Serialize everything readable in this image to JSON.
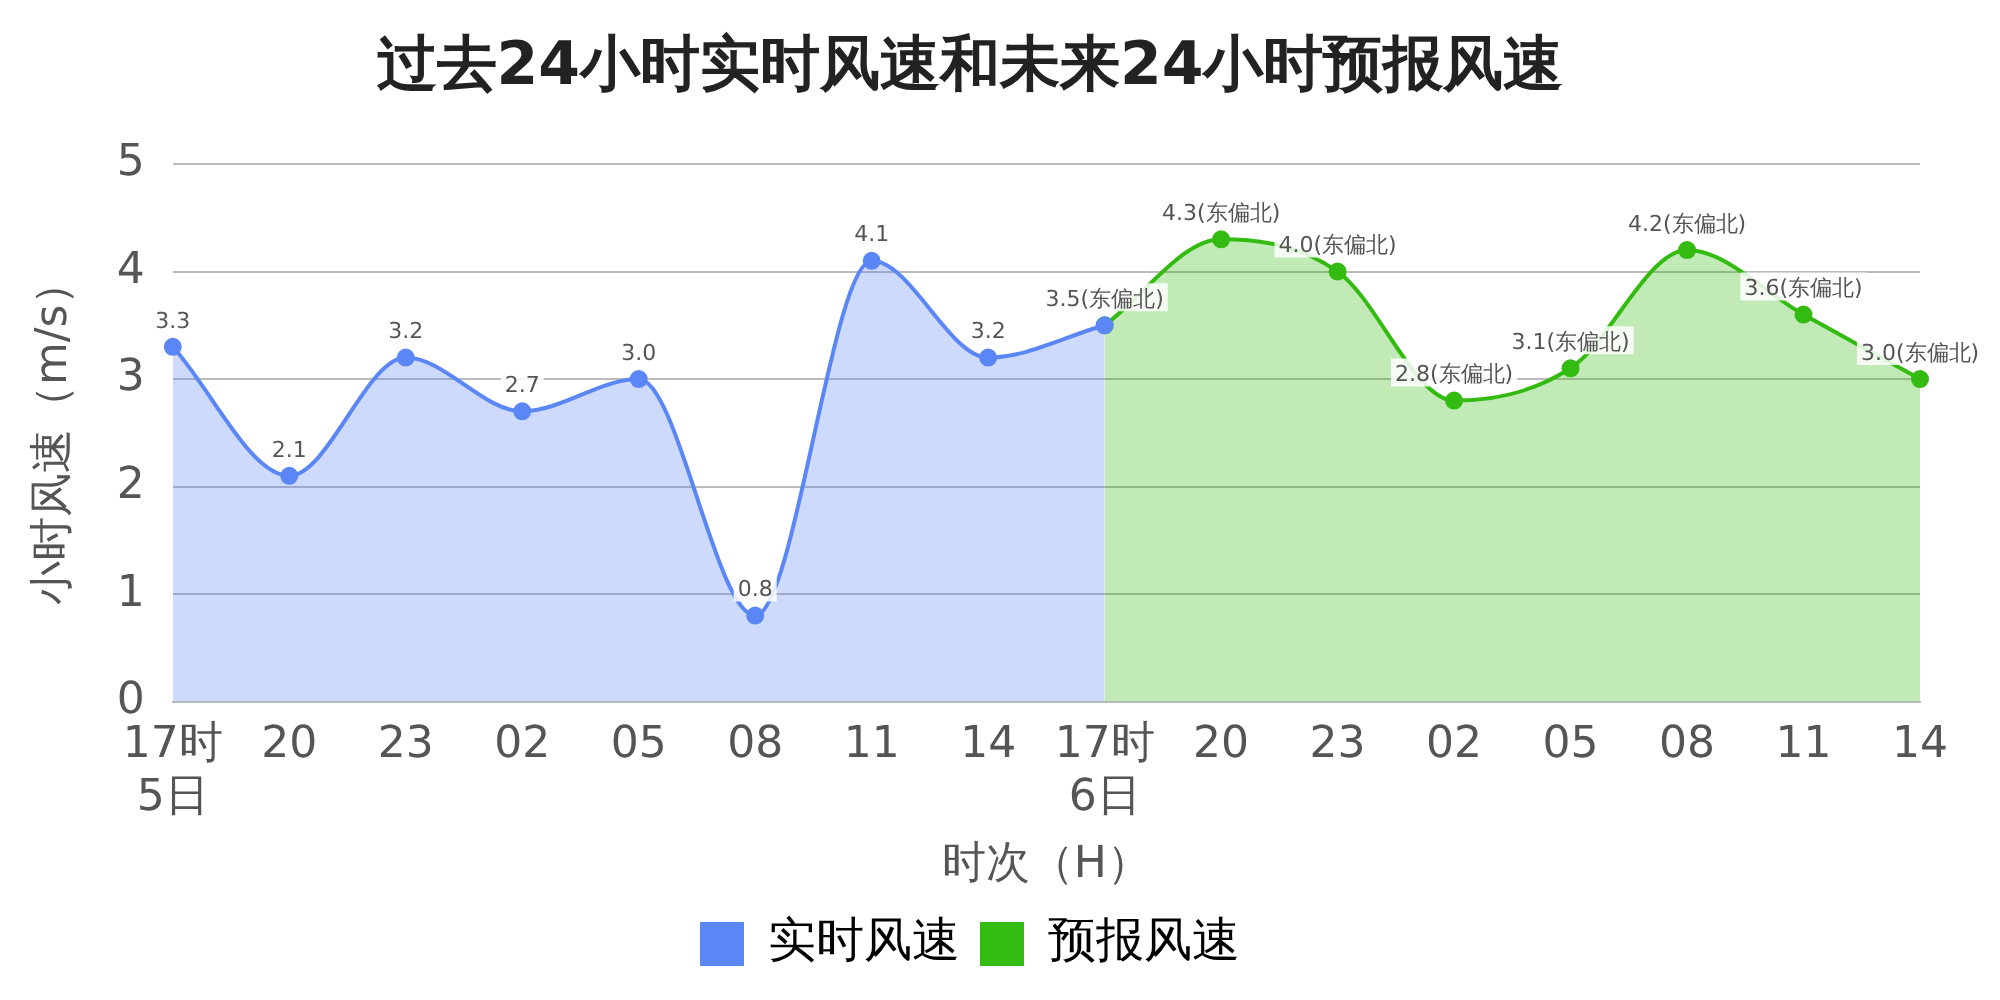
{
  "chart_data": {
    "type": "area",
    "title": "过去24小时实时风速和未来24小时预报风速",
    "xlabel": "时次（H）",
    "ylabel": "小时风速（m/s）",
    "categories": [
      "17时\n5日",
      "20",
      "23",
      "02",
      "05",
      "08",
      "11",
      "14",
      "17时\n6日",
      "20",
      "23",
      "02",
      "05",
      "08",
      "11",
      "14"
    ],
    "series": [
      {
        "name": "实时风速",
        "color": "#5b86f5",
        "values": [
          3.3,
          2.1,
          3.2,
          2.7,
          3.0,
          0.8,
          4.1,
          3.2,
          3.5,
          null,
          null,
          null,
          null,
          null,
          null,
          null
        ],
        "value_labels": [
          "3.3",
          "2.1",
          "3.2",
          "2.7",
          "3.0",
          "0.8",
          "4.1",
          "3.2",
          null,
          null,
          null,
          null,
          null,
          null,
          null,
          null
        ]
      },
      {
        "name": "预报风速",
        "color": "#33bb11",
        "values": [
          null,
          null,
          null,
          null,
          null,
          null,
          null,
          null,
          3.5,
          4.3,
          4.0,
          2.8,
          3.1,
          4.2,
          3.6,
          3.0
        ],
        "value_labels": [
          null,
          null,
          null,
          null,
          null,
          null,
          null,
          null,
          "3.5(东偏北)",
          "4.3(东偏北)",
          "4.0(东偏北)",
          "2.8(东偏北)",
          "3.1(东偏北)",
          "4.2(东偏北)",
          "3.6(东偏北)",
          "3.0(东偏北)"
        ]
      }
    ],
    "ylim": [
      0,
      5
    ],
    "yticks": [
      0,
      1,
      2,
      3,
      4,
      5
    ],
    "grid": "y",
    "legend": "bottom",
    "marker": "circle"
  }
}
